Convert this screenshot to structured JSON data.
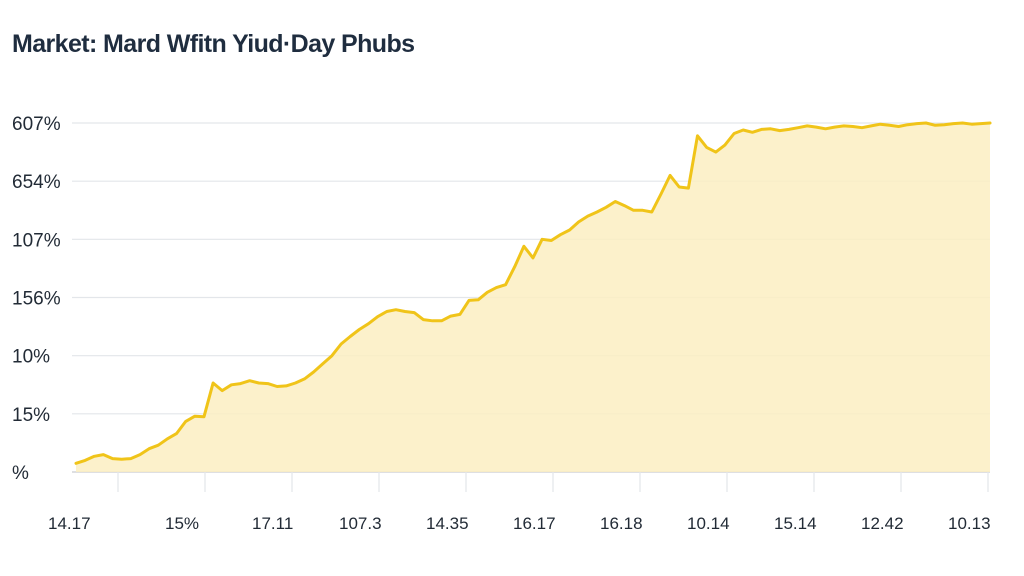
{
  "chart_data": {
    "type": "area",
    "title": "Market: Mard Wfitn Yiud·Day Phubs",
    "xlabel": "",
    "ylabel": "",
    "y_tick_labels": [
      "607%",
      "654%",
      "107%",
      "156%",
      "10%",
      "15%",
      "%"
    ],
    "x_tick_labels": [
      "14.17",
      "15%",
      "17.11",
      "107.3",
      "14.35",
      "16.17",
      "16.18",
      "10.14",
      "15.14",
      "12.42",
      "10.13"
    ],
    "ylim": [
      0,
      6
    ],
    "grid": true,
    "legend": "none",
    "colors": {
      "line": "#f0c419",
      "fill": "#fbefc2",
      "grid": "#e3e6ea",
      "axis": "#c9ccd1"
    },
    "x": [
      0,
      1,
      2,
      3,
      4,
      5,
      6,
      7,
      8,
      9,
      10,
      11,
      12,
      13,
      14,
      15,
      16,
      17,
      18,
      19,
      20,
      21,
      22,
      23,
      24,
      25,
      26,
      27,
      28,
      29,
      30,
      31,
      32,
      33,
      34,
      35,
      36,
      37,
      38,
      39,
      40,
      41,
      42,
      43,
      44,
      45,
      46,
      47,
      48,
      49,
      50,
      51,
      52,
      53,
      54,
      55,
      56,
      57,
      58,
      59,
      60,
      61,
      62,
      63,
      64,
      65,
      66,
      67,
      68,
      69,
      70,
      71,
      72,
      73,
      74,
      75,
      76,
      77,
      78,
      79,
      80,
      81,
      82,
      83,
      84,
      85,
      86,
      87,
      88,
      89,
      90,
      91,
      92,
      93,
      94,
      95,
      96,
      97,
      98,
      99,
      100
    ],
    "values": [
      0.15,
      0.2,
      0.27,
      0.3,
      0.23,
      0.22,
      0.23,
      0.3,
      0.4,
      0.46,
      0.57,
      0.66,
      0.87,
      0.96,
      0.95,
      1.53,
      1.4,
      1.5,
      1.52,
      1.57,
      1.53,
      1.52,
      1.47,
      1.48,
      1.53,
      1.6,
      1.72,
      1.86,
      2.0,
      2.2,
      2.33,
      2.45,
      2.55,
      2.67,
      2.76,
      2.79,
      2.76,
      2.74,
      2.62,
      2.6,
      2.6,
      2.68,
      2.71,
      2.95,
      2.96,
      3.09,
      3.17,
      3.22,
      3.53,
      3.88,
      3.68,
      4.0,
      3.98,
      4.08,
      4.16,
      4.3,
      4.4,
      4.47,
      4.55,
      4.65,
      4.58,
      4.5,
      4.5,
      4.47,
      4.78,
      5.1,
      4.9,
      4.88,
      5.78,
      5.58,
      5.5,
      5.62,
      5.82,
      5.88,
      5.84,
      5.89,
      5.9,
      5.87,
      5.89,
      5.92,
      5.95,
      5.93,
      5.9,
      5.93,
      5.95,
      5.94,
      5.92,
      5.95,
      5.98,
      5.96,
      5.94,
      5.97,
      5.99,
      6.0,
      5.96,
      5.97,
      5.99,
      6.0,
      5.98,
      5.99,
      6.0
    ]
  }
}
